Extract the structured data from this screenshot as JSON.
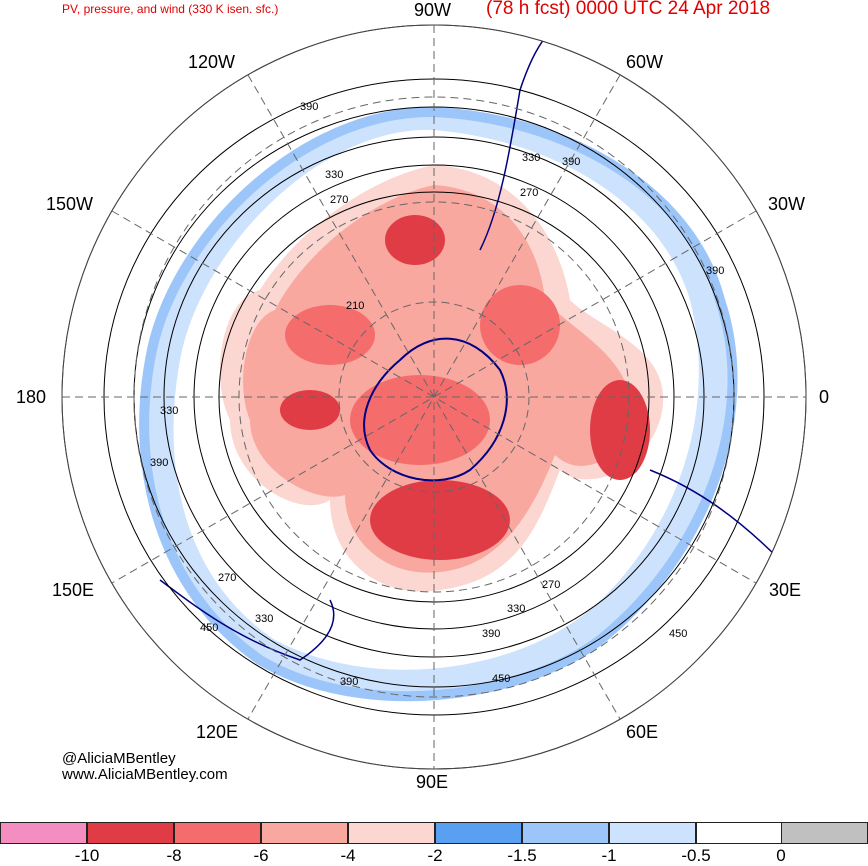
{
  "header": {
    "subtitle": "PV, pressure, and wind (330 K isen. sfc.)",
    "valid_time": "(78 h fcst) 0000 UTC 24 Apr 2018"
  },
  "longitude_labels": {
    "top": "90W",
    "top_left": "120W",
    "top_right": "60W",
    "upper_left": "150W",
    "upper_right": "30W",
    "left": "180",
    "right": "0",
    "lower_left": "150E",
    "lower_right": "30E",
    "bottom_left": "120E",
    "bottom_right": "60E",
    "bottom": "90E"
  },
  "contour_labels": [
    "390",
    "330",
    "270",
    "390",
    "330",
    "270",
    "390",
    "210",
    "330",
    "390",
    "270",
    "270",
    "330",
    "450",
    "330",
    "390",
    "390",
    "450",
    "450"
  ],
  "credits": {
    "handle": "@AliciaMBentley",
    "website": "www.AliciaMBentley.com"
  },
  "colorbar": {
    "boxes": [
      {
        "color": "#f48ec0"
      },
      {
        "color": "#e03c46"
      },
      {
        "color": "#f56c6c"
      },
      {
        "color": "#f9a8a0"
      },
      {
        "color": "#fcd6d0"
      },
      {
        "color": "#5aa0f2"
      },
      {
        "color": "#9cc6fa"
      },
      {
        "color": "#cde2fc"
      },
      {
        "color": "#ffffff"
      },
      {
        "color": "#c0c0c0"
      }
    ],
    "tick_labels": [
      "-10",
      "-8",
      "-6",
      "-4",
      "-2",
      "-1.5",
      "-1",
      "-0.5",
      "0"
    ]
  },
  "colors": {
    "title": "#e00000",
    "coastline": "#000080",
    "contour": "#000000"
  }
}
